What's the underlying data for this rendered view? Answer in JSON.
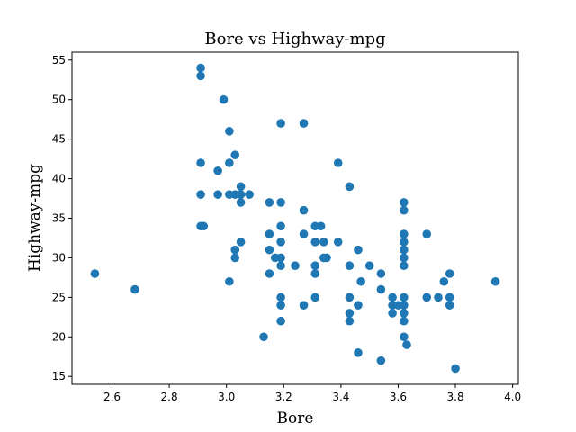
{
  "chart_data": {
    "type": "scatter",
    "title": "Bore vs Highway-mpg",
    "xlabel": "Bore",
    "ylabel": "Highway-mpg",
    "xlim": [
      2.46,
      4.02
    ],
    "ylim": [
      14.0,
      56.0
    ],
    "xticks": [
      2.6,
      2.8,
      3.0,
      3.2,
      3.4,
      3.6,
      3.8,
      4.0
    ],
    "xtick_labels": [
      "2.6",
      "2.8",
      "3.0",
      "3.2",
      "3.4",
      "3.6",
      "3.8",
      "4.0"
    ],
    "yticks": [
      15,
      20,
      25,
      30,
      35,
      40,
      45,
      50,
      55
    ],
    "ytick_labels": [
      "15",
      "20",
      "25",
      "30",
      "35",
      "40",
      "45",
      "50",
      "55"
    ],
    "grid": false,
    "color": "#1f77b4",
    "points": [
      [
        2.54,
        28
      ],
      [
        2.68,
        26
      ],
      [
        2.91,
        54
      ],
      [
        2.91,
        53
      ],
      [
        2.91,
        42
      ],
      [
        2.91,
        38
      ],
      [
        2.91,
        34
      ],
      [
        2.92,
        34
      ],
      [
        2.97,
        41
      ],
      [
        2.97,
        38
      ],
      [
        2.99,
        50
      ],
      [
        3.01,
        46
      ],
      [
        3.01,
        42
      ],
      [
        3.01,
        38
      ],
      [
        3.01,
        27
      ],
      [
        3.03,
        43
      ],
      [
        3.03,
        38
      ],
      [
        3.03,
        31
      ],
      [
        3.03,
        30
      ],
      [
        3.05,
        39
      ],
      [
        3.05,
        38
      ],
      [
        3.05,
        37
      ],
      [
        3.05,
        32
      ],
      [
        3.08,
        38
      ],
      [
        3.13,
        20
      ],
      [
        3.15,
        37
      ],
      [
        3.15,
        33
      ],
      [
        3.15,
        31
      ],
      [
        3.15,
        28
      ],
      [
        3.17,
        30
      ],
      [
        3.19,
        47
      ],
      [
        3.19,
        37
      ],
      [
        3.19,
        34
      ],
      [
        3.19,
        32
      ],
      [
        3.19,
        30
      ],
      [
        3.19,
        29
      ],
      [
        3.19,
        25
      ],
      [
        3.19,
        24
      ],
      [
        3.19,
        22
      ],
      [
        3.24,
        29
      ],
      [
        3.27,
        47
      ],
      [
        3.27,
        36
      ],
      [
        3.27,
        33
      ],
      [
        3.27,
        24
      ],
      [
        3.31,
        34
      ],
      [
        3.31,
        32
      ],
      [
        3.31,
        29
      ],
      [
        3.31,
        28
      ],
      [
        3.31,
        25
      ],
      [
        3.33,
        34
      ],
      [
        3.34,
        32
      ],
      [
        3.34,
        30
      ],
      [
        3.35,
        30
      ],
      [
        3.39,
        42
      ],
      [
        3.39,
        32
      ],
      [
        3.43,
        39
      ],
      [
        3.43,
        29
      ],
      [
        3.43,
        25
      ],
      [
        3.43,
        23
      ],
      [
        3.43,
        22
      ],
      [
        3.46,
        31
      ],
      [
        3.46,
        24
      ],
      [
        3.46,
        18
      ],
      [
        3.47,
        27
      ],
      [
        3.5,
        29
      ],
      [
        3.54,
        28
      ],
      [
        3.54,
        26
      ],
      [
        3.54,
        17
      ],
      [
        3.58,
        25
      ],
      [
        3.58,
        24
      ],
      [
        3.58,
        23
      ],
      [
        3.6,
        24
      ],
      [
        3.62,
        37
      ],
      [
        3.62,
        36
      ],
      [
        3.62,
        33
      ],
      [
        3.62,
        32
      ],
      [
        3.62,
        31
      ],
      [
        3.62,
        30
      ],
      [
        3.62,
        29
      ],
      [
        3.62,
        25
      ],
      [
        3.62,
        24
      ],
      [
        3.62,
        23
      ],
      [
        3.62,
        22
      ],
      [
        3.62,
        20
      ],
      [
        3.63,
        19
      ],
      [
        3.7,
        33
      ],
      [
        3.7,
        25
      ],
      [
        3.74,
        25
      ],
      [
        3.76,
        27
      ],
      [
        3.78,
        28
      ],
      [
        3.78,
        25
      ],
      [
        3.78,
        24
      ],
      [
        3.8,
        16
      ],
      [
        3.94,
        27
      ]
    ]
  }
}
